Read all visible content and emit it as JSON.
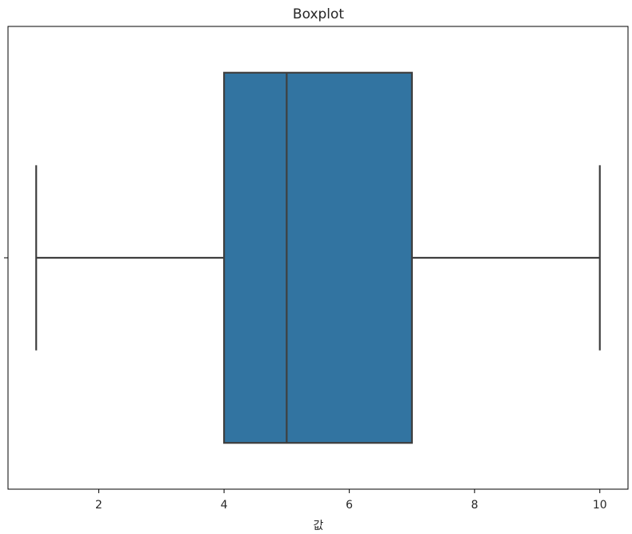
{
  "chart_data": {
    "type": "boxplot",
    "title": "Boxplot",
    "xlabel": "값",
    "ylabel": "",
    "orientation": "horizontal",
    "xlim": [
      0.55,
      10.45
    ],
    "xticks": [
      2,
      4,
      6,
      8,
      10
    ],
    "grid": false,
    "series": [
      {
        "whisker_low": 1,
        "q1": 4,
        "median": 5,
        "q3": 7,
        "whisker_high": 10,
        "color": "#3274a1"
      }
    ]
  }
}
